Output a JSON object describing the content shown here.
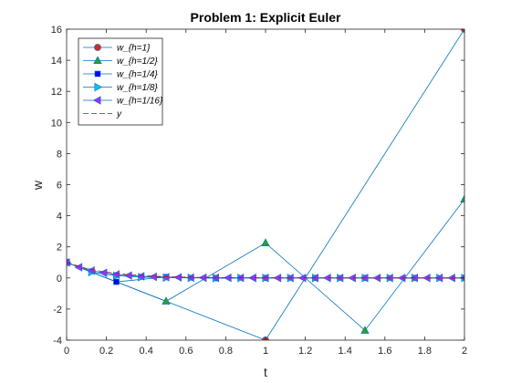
{
  "chart_data": {
    "type": "line",
    "title": "Problem 1: Explicit Euler",
    "xlabel": "t",
    "ylabel": "w",
    "xlim": [
      0,
      2
    ],
    "ylim": [
      -4,
      16
    ],
    "xticks": [
      0,
      0.2,
      0.4,
      0.6,
      0.8,
      1,
      1.2,
      1.4,
      1.6,
      1.8,
      2
    ],
    "xtick_labels": [
      "0",
      "0.2",
      "0.4",
      "0.6",
      "0.8",
      "1",
      "1.2",
      "1.4",
      "1.6",
      "1.8",
      "2"
    ],
    "yticks": [
      -4,
      -2,
      0,
      2,
      4,
      6,
      8,
      10,
      12,
      14,
      16
    ],
    "ytick_labels": [
      "-4",
      "-2",
      "0",
      "2",
      "4",
      "6",
      "8",
      "10",
      "12",
      "14",
      "16"
    ],
    "grid": false,
    "legend_position": "top-left",
    "line_color": "#0072bd",
    "series": [
      {
        "name": "w_{h=1}",
        "marker": "circle",
        "marker_color": "#d62728",
        "x": [
          0,
          1,
          2
        ],
        "y": [
          1,
          -4,
          16
        ]
      },
      {
        "name": "w_{h=1/2}",
        "marker": "triangle-up",
        "marker_color": "#2ca02c",
        "x": [
          0,
          0.5,
          1,
          1.5,
          2
        ],
        "y": [
          1,
          -1.5,
          2.25,
          -3.375,
          5.0625
        ]
      },
      {
        "name": "w_{h=1/4}",
        "marker": "square",
        "marker_color": "#0000ff",
        "x": [
          0,
          0.25,
          0.5,
          0.75,
          1,
          1.25,
          1.5,
          1.75,
          2
        ],
        "y": [
          1,
          -0.25,
          0.0625,
          -0.0156,
          0.0039,
          -0.001,
          0.0002,
          -0.0001,
          0
        ]
      },
      {
        "name": "w_{h=1/8}",
        "marker": "triangle-right",
        "marker_color": "#00bfff",
        "x": [
          0,
          0.125,
          0.25,
          0.375,
          0.5,
          0.625,
          0.75,
          0.875,
          1,
          1.125,
          1.25,
          1.375,
          1.5,
          1.625,
          1.75,
          1.875,
          2
        ],
        "y": [
          1,
          0.375,
          0.1406,
          0.0527,
          0.0198,
          0.0074,
          0.0028,
          0.001,
          0.0004,
          0.0001,
          0.0001,
          0,
          0,
          0,
          0,
          0,
          0
        ]
      },
      {
        "name": "w_{h=1/16}",
        "marker": "triangle-left",
        "marker_color": "#9b30ff",
        "x": [
          0,
          0.0625,
          0.125,
          0.1875,
          0.25,
          0.3125,
          0.375,
          0.4375,
          0.5,
          0.5625,
          0.625,
          0.6875,
          0.75,
          0.8125,
          0.875,
          0.9375,
          1,
          1.0625,
          1.125,
          1.1875,
          1.25,
          1.3125,
          1.375,
          1.4375,
          1.5,
          1.5625,
          1.625,
          1.6875,
          1.75,
          1.8125,
          1.875,
          1.9375,
          2
        ],
        "y": [
          1,
          0.6875,
          0.4727,
          0.325,
          0.2234,
          0.1536,
          0.1056,
          0.0726,
          0.0499,
          0.0343,
          0.0236,
          0.0162,
          0.0112,
          0.0077,
          0.0053,
          0.0036,
          0.0025,
          0.0017,
          0.0012,
          0.0008,
          0.0006,
          0.0004,
          0.0003,
          0.0002,
          0.0001,
          0.0001,
          0.0001,
          0,
          0,
          0,
          0,
          0,
          0
        ]
      },
      {
        "name": "y",
        "marker": "none",
        "line_style": "dashed",
        "line_color": "#a2142f",
        "x": [
          0,
          0.1,
          0.2,
          0.3,
          0.4,
          0.5,
          0.6,
          0.7,
          0.8,
          0.9,
          1,
          1.2,
          1.4,
          1.6,
          1.8,
          2
        ],
        "y": [
          1,
          0.6065,
          0.3679,
          0.2231,
          0.1353,
          0.0821,
          0.0498,
          0.0302,
          0.0183,
          0.0111,
          0.0067,
          0.0025,
          0.0009,
          0.0003,
          0.0001,
          0
        ]
      }
    ]
  }
}
